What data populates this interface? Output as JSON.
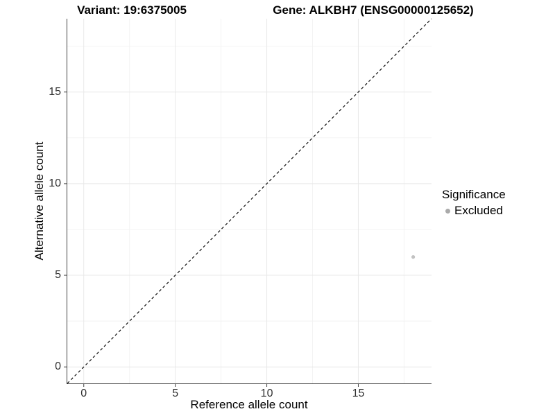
{
  "figure": {
    "title_left": "Variant: 19:6375005",
    "title_right": "Gene: ALKBH7 (ENSG00000125652)"
  },
  "chart_data": {
    "type": "scatter",
    "title": "Variant: 19:6375005   Gene: ALKBH7 (ENSG00000125652)",
    "xlabel": "Reference allele count",
    "ylabel": "Alternative allele count",
    "xlim": [
      -0.9,
      19.0
    ],
    "ylim": [
      -0.9,
      19.0
    ],
    "x_major_ticks": [
      0,
      5,
      10,
      15
    ],
    "y_major_ticks": [
      0,
      5,
      10,
      15
    ],
    "x_minor_ticks": [
      2.5,
      7.5,
      12.5,
      17.5
    ],
    "y_minor_ticks": [
      2.5,
      7.5,
      12.5,
      17.5
    ],
    "grid": true,
    "series": [
      {
        "name": "Excluded",
        "points": [
          {
            "x": 18,
            "y": 6
          }
        ],
        "color": "#c2c2c2",
        "point_radius": 2.6
      }
    ],
    "reference_line": {
      "type": "identity",
      "style": "dashed",
      "color": "#111111"
    },
    "legend": {
      "title": "Significance",
      "position": "right",
      "items": [
        {
          "label": "Excluded",
          "marker_color": "#aaaaaa"
        }
      ]
    }
  },
  "style_colors": {
    "axis_line": "#404040",
    "tick_text": "#303030",
    "grid_major": "#e8e8e8",
    "grid_minor": "#f3f3f3"
  }
}
